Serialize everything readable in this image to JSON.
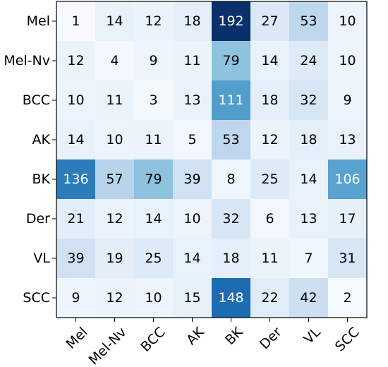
{
  "chart_data": {
    "type": "heatmap",
    "title": "",
    "xlabel": "",
    "ylabel": "",
    "x_categories": [
      "Mel",
      "Mel-Nv",
      "BCC",
      "AK",
      "BK",
      "Der",
      "VL",
      "SCC"
    ],
    "y_categories": [
      "Mel",
      "Mel-Nv",
      "BCC",
      "AK",
      "BK",
      "Der",
      "VL",
      "SCC"
    ],
    "values": [
      [
        1,
        14,
        12,
        18,
        192,
        27,
        53,
        10
      ],
      [
        12,
        4,
        9,
        11,
        79,
        14,
        24,
        10
      ],
      [
        10,
        11,
        3,
        13,
        111,
        18,
        32,
        9
      ],
      [
        14,
        10,
        11,
        5,
        53,
        12,
        18,
        13
      ],
      [
        136,
        57,
        79,
        39,
        8,
        25,
        14,
        106
      ],
      [
        21,
        12,
        14,
        10,
        32,
        6,
        13,
        17
      ],
      [
        39,
        19,
        25,
        14,
        18,
        11,
        7,
        31
      ],
      [
        9,
        12,
        10,
        15,
        148,
        22,
        42,
        2
      ]
    ],
    "colormap": "Blues",
    "value_range": [
      0,
      192
    ],
    "grid": false,
    "legend": "none"
  }
}
